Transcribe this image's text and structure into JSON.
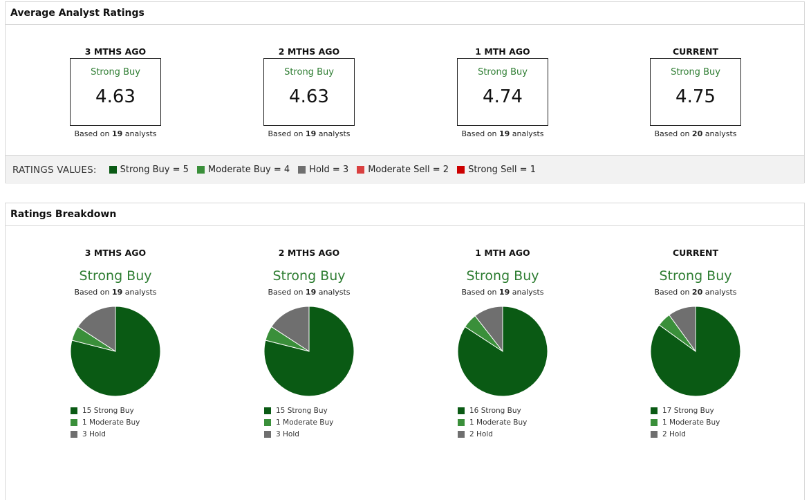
{
  "avg_panel": {
    "title": "Average Analyst Ratings",
    "columns": [
      {
        "title": "3 MTHS AGO",
        "label": "Strong Buy",
        "score": "4.63",
        "based_prefix": "Based on",
        "based_count": "19",
        "based_suffix": "analysts"
      },
      {
        "title": "2 MTHS AGO",
        "label": "Strong Buy",
        "score": "4.63",
        "based_prefix": "Based on",
        "based_count": "19",
        "based_suffix": "analysts"
      },
      {
        "title": "1 MTH AGO",
        "label": "Strong Buy",
        "score": "4.74",
        "based_prefix": "Based on",
        "based_count": "19",
        "based_suffix": "analysts"
      },
      {
        "title": "CURRENT",
        "label": "Strong Buy",
        "score": "4.75",
        "based_prefix": "Based on",
        "based_count": "20",
        "based_suffix": "analysts"
      }
    ],
    "ratings_values": {
      "title": "RATINGS VALUES:",
      "items": [
        {
          "label": "Strong Buy = 5",
          "color": "#0a5a14"
        },
        {
          "label": "Moderate Buy = 4",
          "color": "#3a8f3a"
        },
        {
          "label": "Hold = 3",
          "color": "#6f6f6f"
        },
        {
          "label": "Moderate Sell = 2",
          "color": "#d94040"
        },
        {
          "label": "Strong Sell = 1",
          "color": "#cc0000"
        }
      ]
    }
  },
  "breakdown_panel": {
    "title": "Ratings Breakdown",
    "columns": [
      {
        "title": "3 MTHS AGO",
        "verdict": "Strong Buy",
        "based_prefix": "Based on",
        "based_count": "19",
        "based_suffix": "analysts",
        "legend": [
          "15 Strong Buy",
          "1 Moderate Buy",
          "3 Hold"
        ]
      },
      {
        "title": "2 MTHS AGO",
        "verdict": "Strong Buy",
        "based_prefix": "Based on",
        "based_count": "19",
        "based_suffix": "analysts",
        "legend": [
          "15 Strong Buy",
          "1 Moderate Buy",
          "3 Hold"
        ]
      },
      {
        "title": "1 MTH AGO",
        "verdict": "Strong Buy",
        "based_prefix": "Based on",
        "based_count": "19",
        "based_suffix": "analysts",
        "legend": [
          "16 Strong Buy",
          "1 Moderate Buy",
          "2 Hold"
        ]
      },
      {
        "title": "CURRENT",
        "verdict": "Strong Buy",
        "based_prefix": "Based on",
        "based_count": "20",
        "based_suffix": "analysts",
        "legend": [
          "17 Strong Buy",
          "1 Moderate Buy",
          "2 Hold"
        ]
      }
    ]
  },
  "chart_data": [
    {
      "type": "pie",
      "categories": [
        "Strong Buy",
        "Moderate Buy",
        "Hold"
      ],
      "values": [
        15,
        1,
        3
      ],
      "colors": [
        "#0a5a14",
        "#3a8f3a",
        "#6f6f6f"
      ]
    },
    {
      "type": "pie",
      "categories": [
        "Strong Buy",
        "Moderate Buy",
        "Hold"
      ],
      "values": [
        15,
        1,
        3
      ],
      "colors": [
        "#0a5a14",
        "#3a8f3a",
        "#6f6f6f"
      ]
    },
    {
      "type": "pie",
      "categories": [
        "Strong Buy",
        "Moderate Buy",
        "Hold"
      ],
      "values": [
        16,
        1,
        2
      ],
      "colors": [
        "#0a5a14",
        "#3a8f3a",
        "#6f6f6f"
      ]
    },
    {
      "type": "pie",
      "categories": [
        "Strong Buy",
        "Moderate Buy",
        "Hold"
      ],
      "values": [
        17,
        1,
        2
      ],
      "colors": [
        "#0a5a14",
        "#3a8f3a",
        "#6f6f6f"
      ]
    }
  ]
}
